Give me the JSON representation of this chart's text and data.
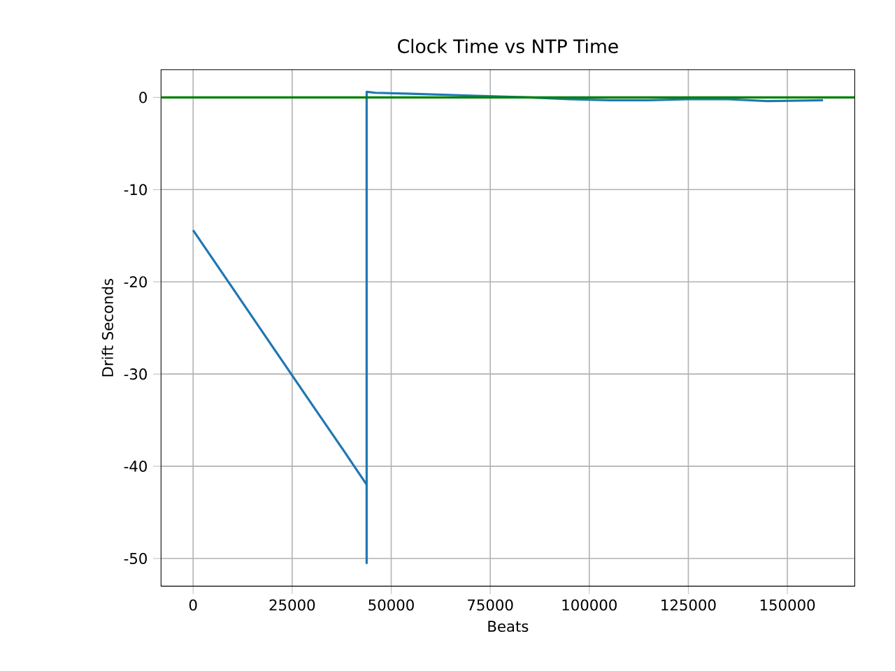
{
  "chart_data": {
    "type": "line",
    "title": "Clock Time vs NTP Time",
    "xlabel": "Beats",
    "ylabel": "Drift Seconds",
    "x": [
      0,
      10000,
      20000,
      30000,
      38000,
      43800,
      43800,
      43800,
      46000,
      55000,
      70000,
      85000,
      95000,
      105000,
      115000,
      125000,
      135000,
      145000,
      159000
    ],
    "series": [
      {
        "color": "#1f77b4",
        "values": [
          -14.4,
          -20.7,
          -27.0,
          -33.3,
          -38.3,
          -42,
          -50.5,
          0.6,
          0.5,
          0.4,
          0.2,
          0,
          -0.2,
          -0.3,
          -0.3,
          -0.2,
          -0.2,
          -0.4,
          -0.3
        ]
      }
    ],
    "xlim": [
      -8100,
      167000
    ],
    "ylim": [
      -53,
      3
    ],
    "xticks": [
      0,
      25000,
      50000,
      75000,
      100000,
      125000,
      150000
    ],
    "yticks": [
      -50,
      -40,
      -30,
      -20,
      -10,
      0
    ],
    "ref_lines": [
      {
        "axis": "y",
        "value": 0,
        "color": "#008000"
      }
    ],
    "grid": true,
    "marker": "none",
    "line_style": "solid"
  }
}
